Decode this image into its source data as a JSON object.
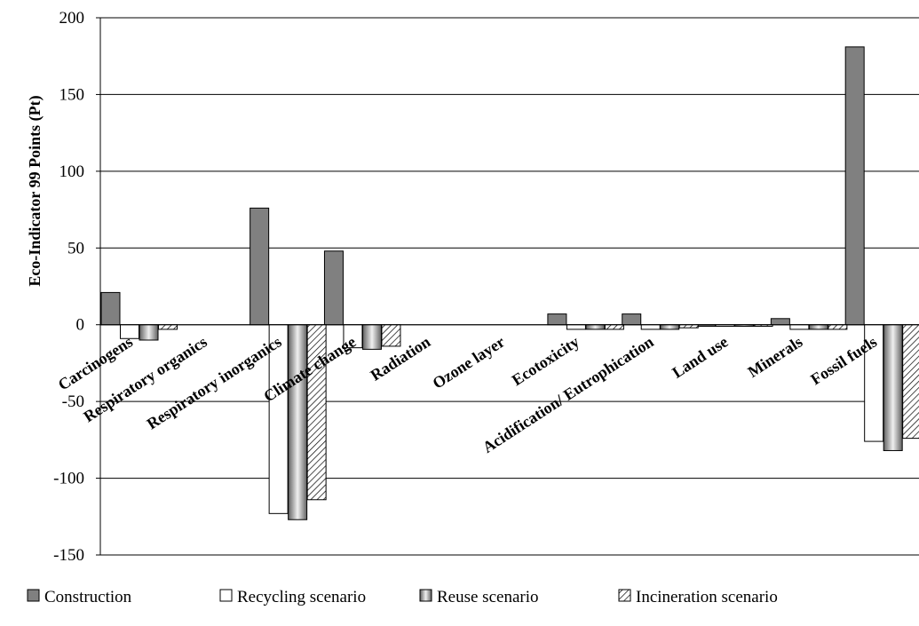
{
  "chart_data": {
    "type": "bar",
    "title": "",
    "xlabel": "",
    "ylabel": "Eco-Indicator 99 Points (Pt)",
    "ylim": [
      -150,
      200
    ],
    "yticks": [
      200,
      150,
      100,
      50,
      0,
      -50,
      -100,
      -150
    ],
    "ytick_labels": [
      "200",
      "150",
      "100",
      "50",
      "0",
      "-50",
      "-100",
      "-150"
    ],
    "grid": true,
    "legend_position": "bottom",
    "categories": [
      "Carcinogens",
      "Respiratory organics",
      "Respiratory inorganics",
      "Climate change",
      "Radiation",
      "Ozone layer",
      "Ecotoxicity",
      "Acidification/ Eutrophication",
      "Land use",
      "Minerals",
      "Fossil fuels"
    ],
    "series": [
      {
        "name": "Construction",
        "pattern": "solid-gray",
        "color": "#808080",
        "values": [
          21,
          0,
          76,
          48,
          0,
          0,
          7,
          7,
          -1,
          4,
          181
        ]
      },
      {
        "name": "Recycling scenario",
        "pattern": "white",
        "color": "#ffffff",
        "values": [
          -9,
          0,
          -123,
          -15,
          0,
          0,
          -3,
          -3,
          -1,
          -3,
          -76
        ]
      },
      {
        "name": "Reuse scenario",
        "pattern": "vertical-gradient",
        "color": "#909090",
        "values": [
          -10,
          0,
          -127,
          -16,
          0,
          0,
          -3,
          -3,
          -1,
          -3,
          -82
        ]
      },
      {
        "name": "Incineration scenario",
        "pattern": "diagonal-hatch",
        "color": "#ffffff",
        "values": [
          -3,
          0,
          -114,
          -14,
          0,
          0,
          -3,
          -2,
          -1,
          -3,
          -74
        ]
      }
    ]
  }
}
